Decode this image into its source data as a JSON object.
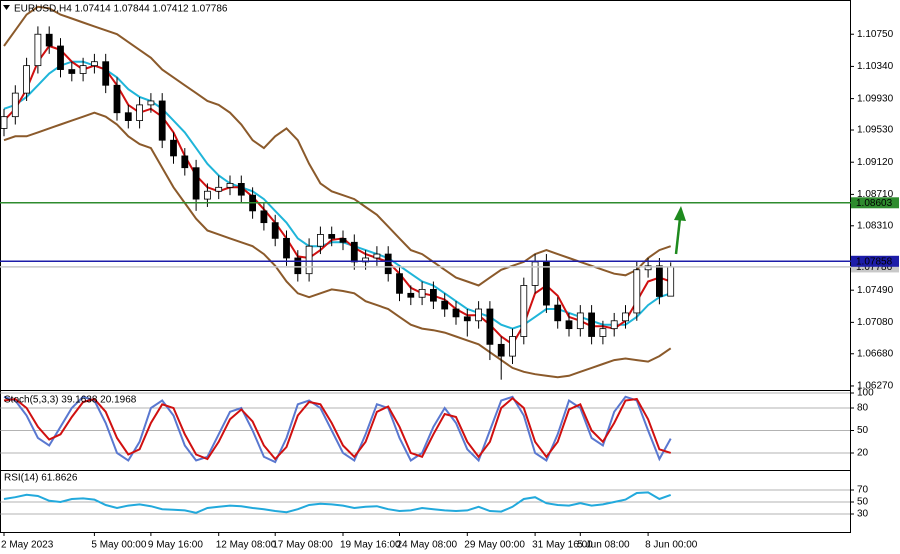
{
  "chart_data": [
    {
      "type": "candlestick",
      "title": "EURUSD,H4  1.07414 1.07844 1.07412 1.07786",
      "categories": [
        "2 May 2023",
        null,
        null,
        null,
        null,
        null,
        null,
        null,
        "5 May 00:00",
        null,
        null,
        null,
        null,
        "9 May 16:00",
        null,
        null,
        null,
        null,
        null,
        "12 May 08:00",
        null,
        null,
        null,
        null,
        "17 May 08:00",
        null,
        null,
        null,
        null,
        null,
        "19 May 16:00",
        null,
        null,
        null,
        null,
        "24 May 08:00",
        null,
        null,
        null,
        null,
        null,
        "29 May 00:00",
        null,
        null,
        null,
        null,
        null,
        "31 May 16:00",
        null,
        null,
        null,
        "5 Jun 08:00",
        null,
        null,
        null,
        null,
        null,
        "8 Jun 00:00",
        null,
        null
      ],
      "open": [
        1.0955,
        1.097,
        1.1,
        1.1035,
        1.1075,
        1.106,
        1.103,
        1.1025,
        1.1035,
        1.104,
        1.101,
        1.0975,
        1.0965,
        1.0985,
        1.099,
        1.094,
        1.092,
        1.0905,
        1.0865,
        1.0875,
        1.088,
        1.0885,
        1.087,
        1.085,
        1.0835,
        1.0815,
        1.079,
        1.077,
        1.0805,
        1.082,
        1.0815,
        1.081,
        1.0785,
        1.079,
        1.0795,
        1.077,
        1.0745,
        1.074,
        1.075,
        1.0735,
        1.0725,
        1.0715,
        1.071,
        1.0725,
        1.068,
        1.0665,
        1.069,
        1.0755,
        1.0785,
        1.073,
        1.071,
        1.07,
        1.072,
        1.069,
        1.07,
        1.071,
        1.072,
        1.0775,
        1.078,
        1.07414
      ],
      "high": [
        1.098,
        1.101,
        1.1045,
        1.1085,
        1.1085,
        1.107,
        1.104,
        1.1045,
        1.105,
        1.105,
        1.102,
        1.0985,
        1.0995,
        1.1,
        1.1,
        1.095,
        1.093,
        1.0915,
        1.0885,
        1.0895,
        1.0895,
        1.0895,
        1.088,
        1.086,
        1.0845,
        1.0825,
        1.08,
        1.0815,
        1.083,
        1.083,
        1.0825,
        1.082,
        1.08,
        1.0805,
        1.0805,
        1.078,
        1.0755,
        1.076,
        1.076,
        1.0745,
        1.0735,
        1.0725,
        1.0735,
        1.0735,
        1.069,
        1.07,
        1.0765,
        1.0795,
        1.0795,
        1.074,
        1.072,
        1.073,
        1.073,
        1.071,
        1.072,
        1.073,
        1.0785,
        1.079,
        1.079,
        1.07844
      ],
      "low": [
        1.0945,
        1.096,
        1.099,
        1.1025,
        1.105,
        1.102,
        1.1015,
        1.1015,
        1.1025,
        1.1,
        1.0965,
        1.0955,
        1.0955,
        1.0975,
        1.093,
        1.091,
        1.0895,
        1.085,
        1.0855,
        1.0865,
        1.087,
        1.086,
        1.084,
        1.0825,
        1.0805,
        1.078,
        1.076,
        1.076,
        1.0795,
        1.0805,
        1.08,
        1.0775,
        1.0775,
        1.078,
        1.076,
        1.0735,
        1.073,
        1.073,
        1.0725,
        1.0715,
        1.0705,
        1.069,
        1.07,
        1.066,
        1.0635,
        1.0655,
        1.068,
        1.0745,
        1.072,
        1.07,
        1.069,
        1.069,
        1.068,
        1.068,
        1.069,
        1.07,
        1.071,
        1.0765,
        1.0731,
        1.07412
      ],
      "close": [
        1.097,
        1.1,
        1.1035,
        1.1075,
        1.106,
        1.103,
        1.1025,
        1.1035,
        1.104,
        1.101,
        1.0975,
        1.0965,
        1.0985,
        1.099,
        1.094,
        1.092,
        1.0905,
        1.0865,
        1.0875,
        1.088,
        1.0885,
        1.087,
        1.085,
        1.0835,
        1.0815,
        1.079,
        1.077,
        1.0805,
        1.082,
        1.0815,
        1.081,
        1.0785,
        1.079,
        1.0795,
        1.077,
        1.0745,
        1.074,
        1.075,
        1.0735,
        1.0725,
        1.0715,
        1.071,
        1.0725,
        1.068,
        1.0665,
        1.069,
        1.0755,
        1.0785,
        1.073,
        1.071,
        1.07,
        1.072,
        1.069,
        1.07,
        1.071,
        1.072,
        1.0775,
        1.078,
        1.0741,
        1.07786
      ],
      "series": [
        {
          "color": "#8b5a2b",
          "values": [
            1.106,
            1.108,
            1.11,
            1.111,
            1.1108,
            1.11,
            1.1095,
            1.109,
            1.1085,
            1.108,
            1.1075,
            1.1065,
            1.1055,
            1.1045,
            1.103,
            1.102,
            1.101,
            1.1,
            1.099,
            1.0985,
            1.0975,
            1.096,
            1.094,
            1.093,
            1.0945,
            1.0955,
            1.094,
            1.091,
            1.0885,
            1.0875,
            1.087,
            1.0865,
            1.0855,
            1.0845,
            1.083,
            1.0815,
            1.08,
            1.0795,
            1.0785,
            1.0775,
            1.0765,
            1.076,
            1.0755,
            1.0765,
            1.0775,
            1.078,
            1.0785,
            1.0795,
            1.08,
            1.0795,
            1.079,
            1.0785,
            1.078,
            1.0775,
            1.077,
            1.0768,
            1.0775,
            1.079,
            1.08,
            1.0805
          ]
        },
        {
          "color": "#8b5a2b",
          "values": [
            1.094,
            1.0945,
            1.0945,
            1.095,
            1.0955,
            1.096,
            1.0965,
            1.097,
            1.0975,
            1.097,
            1.096,
            1.0945,
            1.0935,
            1.093,
            1.0905,
            1.088,
            1.086,
            1.084,
            1.0825,
            1.082,
            1.0815,
            1.081,
            1.0805,
            1.0795,
            1.078,
            1.076,
            1.0745,
            1.074,
            1.0745,
            1.075,
            1.0748,
            1.0745,
            1.0735,
            1.073,
            1.0725,
            1.0715,
            1.0705,
            1.07,
            1.0698,
            1.0695,
            1.069,
            1.0685,
            1.068,
            1.067,
            1.066,
            1.065,
            1.0645,
            1.0642,
            1.064,
            1.0638,
            1.064,
            1.0645,
            1.065,
            1.0655,
            1.066,
            1.0662,
            1.066,
            1.0658,
            1.0665,
            1.0675
          ]
        },
        {
          "color": "#1fb5d9",
          "values": [
            1.098,
            1.0985,
            1.0995,
            1.101,
            1.1025,
            1.1035,
            1.104,
            1.104,
            1.1035,
            1.103,
            1.102,
            1.1005,
            1.0995,
            1.099,
            1.098,
            1.0965,
            1.095,
            1.093,
            1.091,
            1.0895,
            1.0885,
            1.088,
            1.0875,
            1.0865,
            1.085,
            1.0835,
            1.0815,
            1.0805,
            1.0805,
            1.081,
            1.081,
            1.0805,
            1.08,
            1.0795,
            1.079,
            1.078,
            1.077,
            1.076,
            1.0755,
            1.0745,
            1.0735,
            1.0725,
            1.072,
            1.0715,
            1.0705,
            1.07,
            1.0705,
            1.0715,
            1.0725,
            1.0725,
            1.072,
            1.0715,
            1.071,
            1.0705,
            1.0705,
            1.0705,
            1.0715,
            1.073,
            1.074,
            1.0745
          ]
        },
        {
          "color": "#d01010",
          "values": [
            1.0965,
            1.098,
            1.1005,
            1.104,
            1.106,
            1.1055,
            1.104,
            1.103,
            1.1035,
            1.103,
            1.101,
            1.0985,
            1.0975,
            1.098,
            1.097,
            1.095,
            1.092,
            1.0895,
            1.088,
            1.0875,
            1.088,
            1.088,
            1.0868,
            1.0852,
            1.0835,
            1.0815,
            1.0792,
            1.079,
            1.08,
            1.0813,
            1.0815,
            1.0803,
            1.0795,
            1.079,
            1.0785,
            1.077,
            1.0752,
            1.0745,
            1.0742,
            1.0737,
            1.0725,
            1.0717,
            1.0717,
            1.0705,
            1.069,
            1.068,
            1.0705,
            1.0745,
            1.0755,
            1.0742,
            1.0715,
            1.071,
            1.0703,
            1.0703,
            1.07,
            1.071,
            1.0735,
            1.076,
            1.0765,
            1.076
          ]
        }
      ],
      "levels": [
        {
          "value": 1.08603,
          "color": "#2e8b2e"
        },
        {
          "value": 1.07786,
          "color": "#c8c8c8"
        },
        {
          "value": 1.07858,
          "color": "#1c1ca8"
        }
      ],
      "ylim": [
        1.06244,
        1.11186
      ],
      "yticks": [
        {
          "value": 1.1075,
          "label": "1.10750"
        },
        {
          "value": 1.1034,
          "label": "1.10340"
        },
        {
          "value": 1.0993,
          "label": "1.09930"
        },
        {
          "value": 1.0953,
          "label": "1.09530"
        },
        {
          "value": 1.0912,
          "label": "1.09120"
        },
        {
          "value": 1.0871,
          "label": "1.08710"
        },
        {
          "value": 1.0831,
          "label": "1.08310"
        },
        {
          "value": 1.0749,
          "label": "1.07490"
        },
        {
          "value": 1.0708,
          "label": "1.07080"
        },
        {
          "value": 1.0668,
          "label": "1.06680"
        },
        {
          "value": 1.0627,
          "label": "1.06270"
        }
      ],
      "grid": false
    },
    {
      "type": "line",
      "title": "Stoch(5,3,3) 39.1638 20.1968",
      "series": [
        {
          "color": "#5a78d0",
          "values": [
            95,
            90,
            70,
            40,
            30,
            55,
            80,
            95,
            90,
            60,
            20,
            10,
            35,
            80,
            90,
            70,
            30,
            10,
            15,
            45,
            75,
            80,
            50,
            15,
            8,
            40,
            85,
            90,
            80,
            50,
            20,
            10,
            45,
            85,
            80,
            40,
            10,
            20,
            55,
            80,
            60,
            25,
            10,
            50,
            90,
            95,
            70,
            20,
            10,
            45,
            90,
            80,
            40,
            30,
            75,
            95,
            90,
            50,
            12,
            39.1638
          ]
        },
        {
          "color": "#d01010",
          "values": [
            90,
            92,
            80,
            55,
            38,
            45,
            68,
            88,
            92,
            75,
            40,
            18,
            25,
            60,
            85,
            80,
            45,
            18,
            12,
            35,
            65,
            78,
            62,
            30,
            12,
            28,
            70,
            88,
            85,
            60,
            30,
            15,
            35,
            75,
            82,
            55,
            20,
            15,
            45,
            72,
            68,
            35,
            15,
            35,
            80,
            93,
            80,
            35,
            15,
            35,
            78,
            85,
            50,
            35,
            60,
            90,
            92,
            65,
            25,
            20.1968
          ]
        }
      ],
      "ylim": [
        0,
        100
      ],
      "yticks": [
        100,
        80,
        50,
        20
      ],
      "grid": true
    },
    {
      "type": "line",
      "title": "RSI(14) 61.8626",
      "series": [
        {
          "color": "#22a9dc",
          "values": [
            55,
            58,
            62,
            60,
            52,
            50,
            55,
            56,
            54,
            45,
            40,
            44,
            46,
            43,
            38,
            37,
            36,
            32,
            40,
            42,
            44,
            43,
            40,
            38,
            35,
            33,
            38,
            45,
            47,
            46,
            44,
            40,
            42,
            43,
            38,
            35,
            36,
            40,
            38,
            36,
            35,
            36,
            42,
            35,
            34,
            42,
            55,
            58,
            48,
            45,
            44,
            48,
            44,
            46,
            50,
            54,
            65,
            66,
            55,
            61.8626
          ]
        }
      ],
      "ylim": [
        0,
        100
      ],
      "yticks": [
        70,
        50,
        30
      ],
      "grid": true
    }
  ]
}
